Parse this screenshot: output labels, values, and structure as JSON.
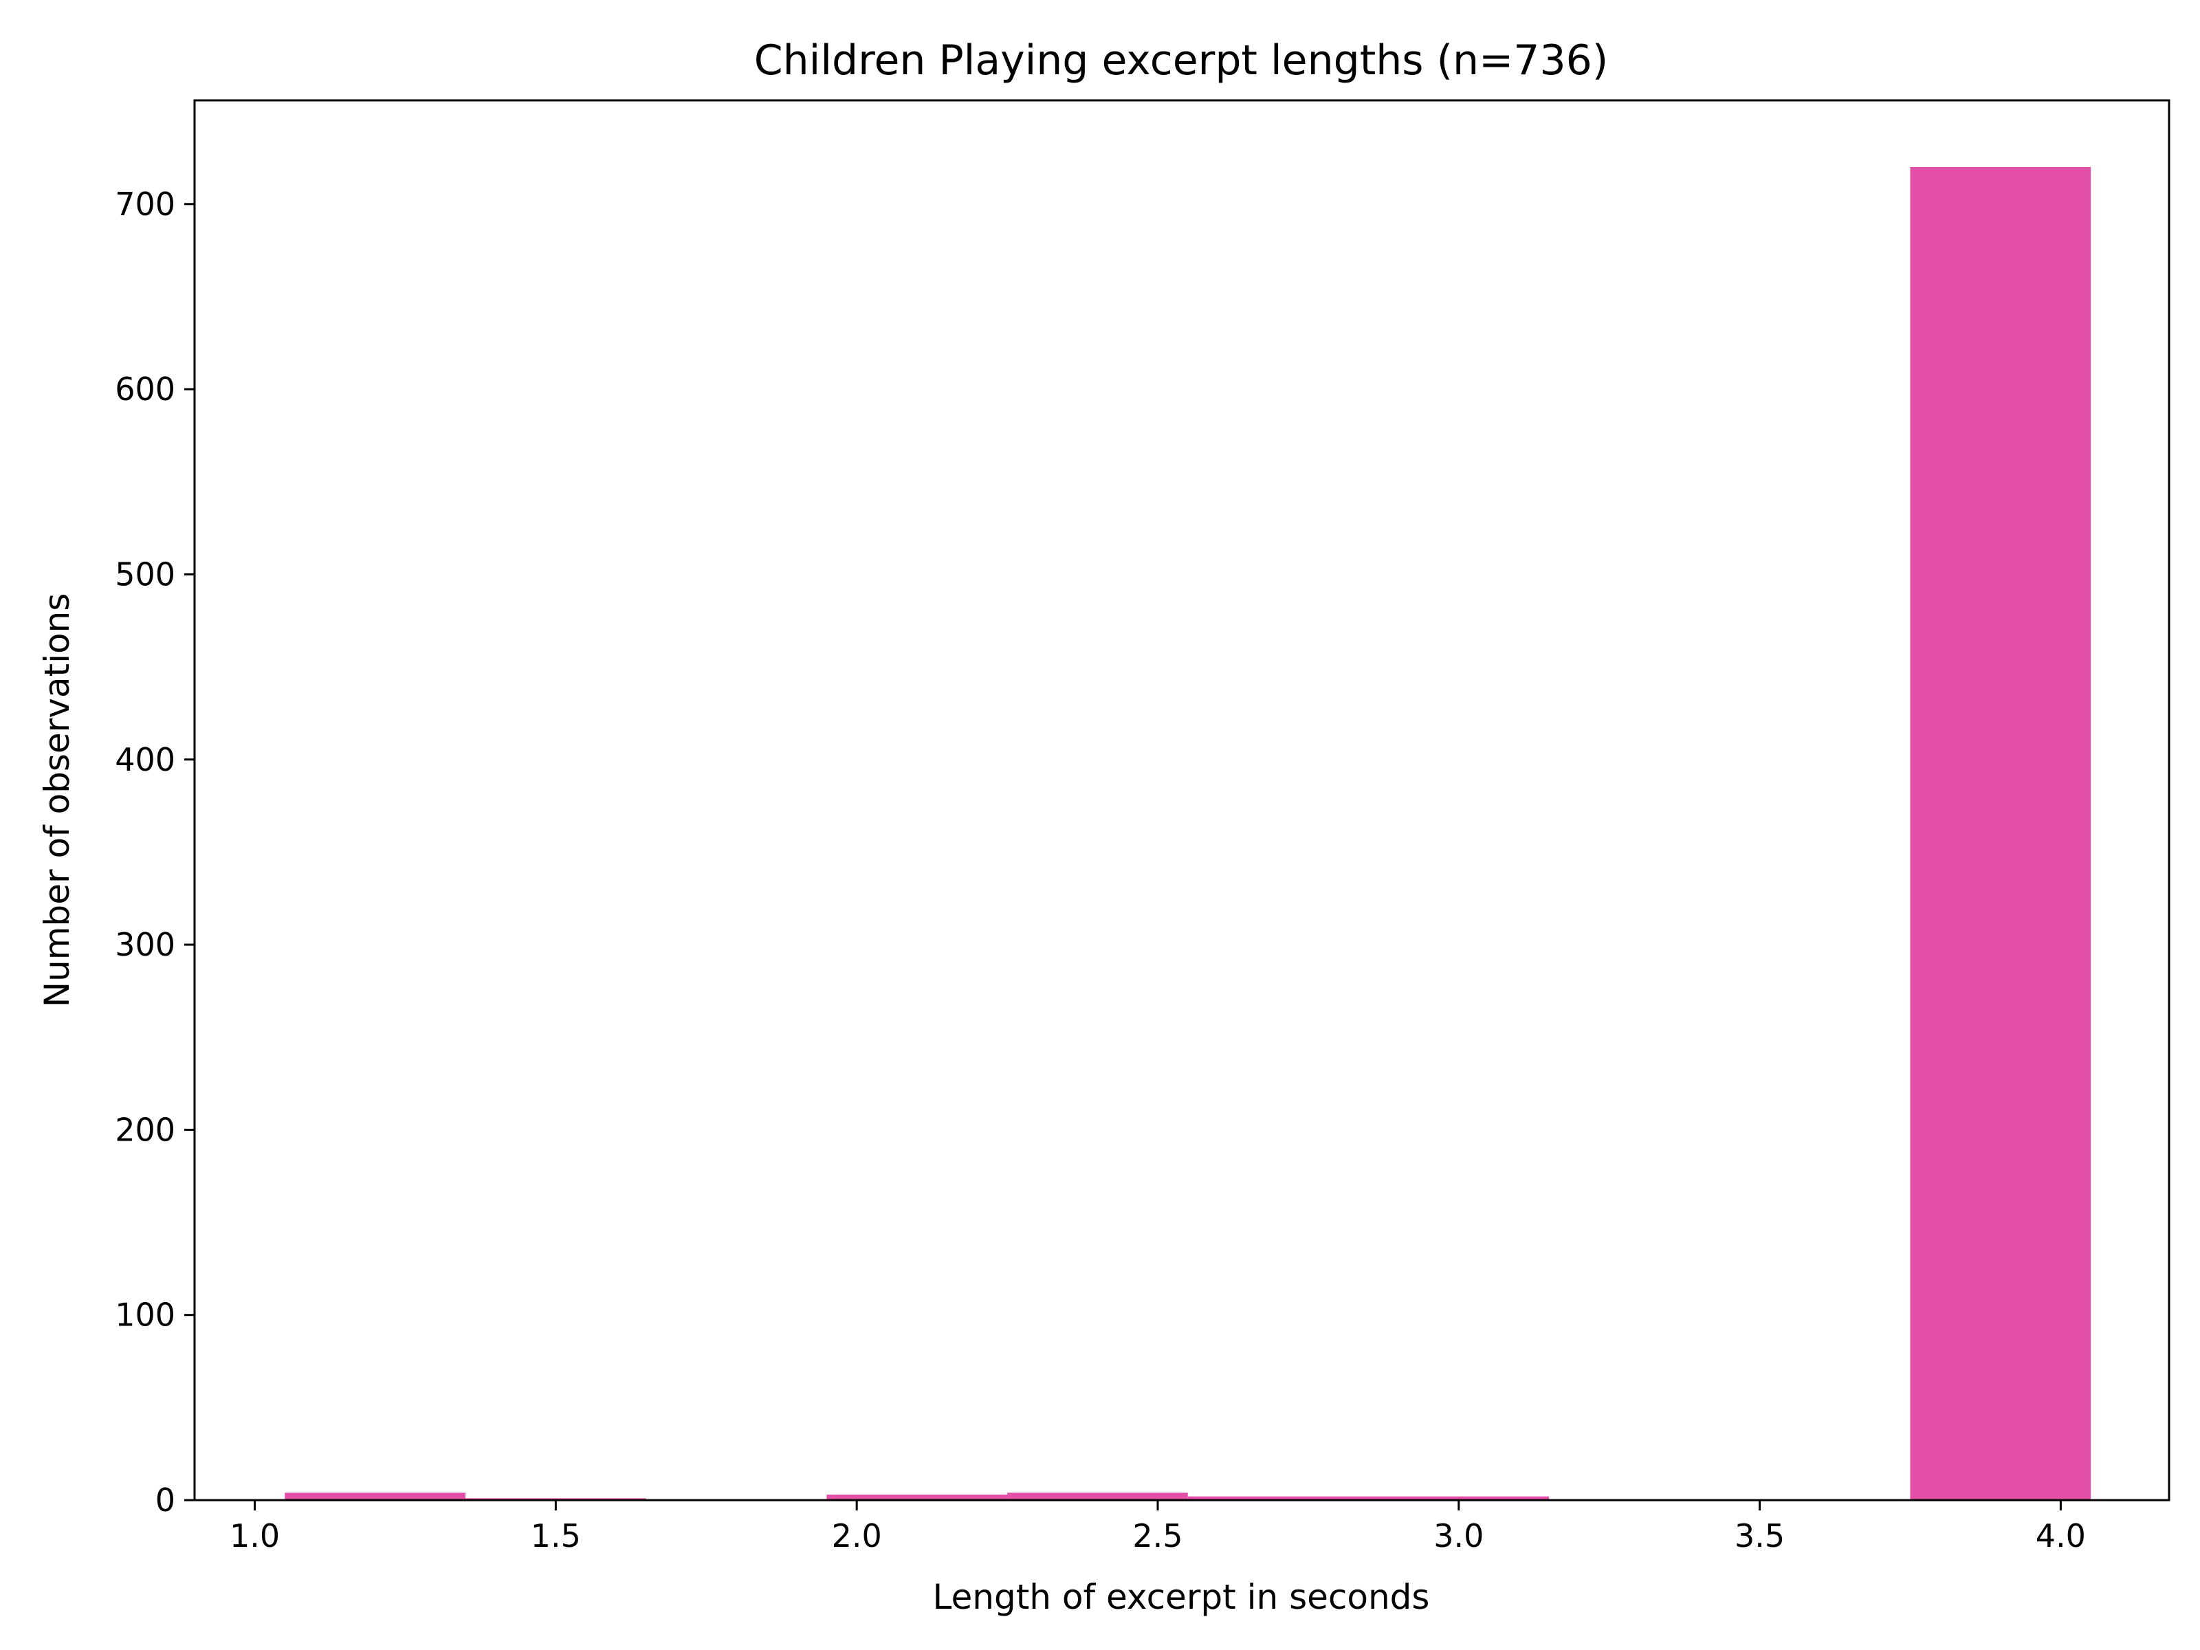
{
  "chart_data": {
    "type": "bar",
    "title": "Children Playing excerpt lengths (n=736)",
    "xlabel": "Length of excerpt in seconds",
    "ylabel": "Number of observations",
    "xlim": [
      0.9,
      4.18
    ],
    "ylim": [
      0,
      756
    ],
    "x_ticks": [
      "1.0",
      "1.5",
      "2.0",
      "2.5",
      "3.0",
      "3.5",
      "4.0"
    ],
    "x_tick_values": [
      1.0,
      1.5,
      2.0,
      2.5,
      3.0,
      3.5,
      4.0
    ],
    "y_ticks": [
      "0",
      "100",
      "200",
      "300",
      "400",
      "500",
      "600",
      "700"
    ],
    "y_tick_values": [
      0,
      100,
      200,
      300,
      400,
      500,
      600,
      700
    ],
    "grid": false,
    "bar_color": "#e34ea6",
    "bins": [
      {
        "x0": 1.05,
        "x1": 1.35,
        "count": 4
      },
      {
        "x0": 1.35,
        "x1": 1.65,
        "count": 1
      },
      {
        "x0": 1.65,
        "x1": 1.95,
        "count": 0
      },
      {
        "x0": 1.95,
        "x1": 2.25,
        "count": 3
      },
      {
        "x0": 2.25,
        "x1": 2.55,
        "count": 4
      },
      {
        "x0": 2.55,
        "x1": 2.85,
        "count": 2
      },
      {
        "x0": 2.85,
        "x1": 3.15,
        "count": 2
      },
      {
        "x0": 3.15,
        "x1": 3.45,
        "count": 0
      },
      {
        "x0": 3.45,
        "x1": 3.75,
        "count": 0
      },
      {
        "x0": 3.75,
        "x1": 4.05,
        "count": 720
      }
    ]
  }
}
